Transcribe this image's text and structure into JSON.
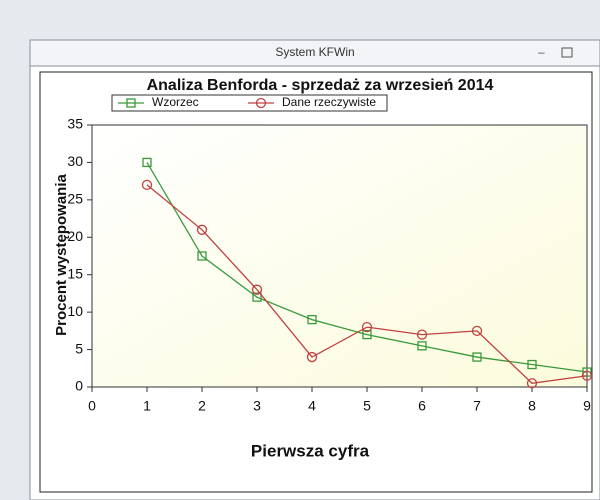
{
  "window": {
    "title": "System KFWin"
  },
  "chart_data": {
    "type": "line",
    "title": "Analiza Benforda - sprzedaż za wrzesień 2014",
    "x_label": "Pierwsza cyfra",
    "y_label": "Procent występowania",
    "x": [
      1,
      2,
      3,
      4,
      5,
      6,
      7,
      8,
      9
    ],
    "series": [
      {
        "name": "Wzorzec",
        "color": "#3a9a3a",
        "marker": "square",
        "values": [
          30,
          17.5,
          12,
          9,
          7,
          5.5,
          4,
          3,
          2
        ]
      },
      {
        "name": "Dane rzeczywiste",
        "color": "#c04040",
        "marker": "circle",
        "values": [
          27,
          21,
          13,
          4,
          8,
          7,
          7.5,
          0.5,
          1.5
        ]
      }
    ],
    "xlim": [
      0,
      9
    ],
    "xticks": [
      0,
      1,
      2,
      3,
      4,
      5,
      6,
      7,
      8,
      9
    ],
    "ylim": [
      0,
      35
    ],
    "yticks": [
      0,
      5,
      10,
      15,
      20,
      25,
      30,
      35
    ],
    "legend": "top"
  }
}
